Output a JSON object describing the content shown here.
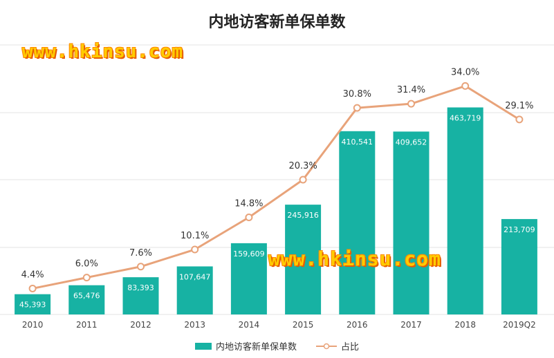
{
  "title": "内地访客新单保单数",
  "watermark": "www.hkinsu.com",
  "colors": {
    "bar": "#17b2a3",
    "line": "#e8a37a",
    "marker_fill": "#ffffff",
    "grid": "#e3e3e3",
    "axis_text": "#444444"
  },
  "chart_data": {
    "type": "bar",
    "categories": [
      "2010",
      "2011",
      "2012",
      "2013",
      "2014",
      "2015",
      "2016",
      "2017",
      "2018",
      "2019Q2"
    ],
    "series": [
      {
        "name": "内地访客新单保单数",
        "type": "bar",
        "values": [
          45393,
          65476,
          83393,
          107647,
          159609,
          245916,
          410541,
          409652,
          463719,
          213709
        ],
        "labels": [
          "45,393",
          "65,476",
          "83,393",
          "107,647",
          "159,609",
          "245,916",
          "410,541",
          "409,652",
          "463,719",
          "213,709"
        ]
      },
      {
        "name": "占比",
        "type": "line",
        "values": [
          4.4,
          6.0,
          7.6,
          10.1,
          14.8,
          20.3,
          30.8,
          31.4,
          34.0,
          29.1
        ],
        "labels": [
          "4.4%",
          "6.0%",
          "7.6%",
          "10.1%",
          "14.8%",
          "20.3%",
          "30.8%",
          "31.4%",
          "34.0%",
          "29.1%"
        ]
      }
    ],
    "grid": true,
    "legend_position": "bottom",
    "y_left_range": [
      0,
      500000
    ],
    "y_right_range": [
      0,
      40
    ]
  }
}
